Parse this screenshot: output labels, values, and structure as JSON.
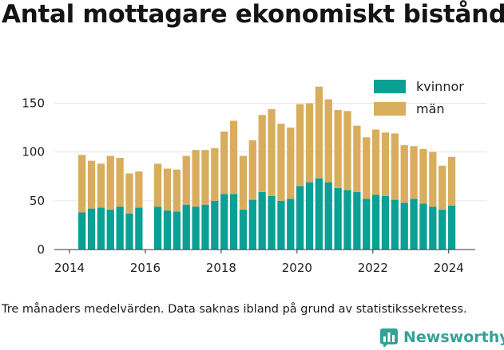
{
  "title": "Antal mottagare ekonomiskt bistånd",
  "footnote": "Tre månaders medelvärden. Data saknas ibland på grund av statistikssekretess.",
  "brand": "Newsworthy",
  "colors": {
    "kvinnor": "#0aa096",
    "man": "#d9ad5e",
    "brand": "#34a298",
    "grid": "#e6e6e6",
    "axis": "#333333"
  },
  "chart_data": {
    "type": "bar",
    "stacked": true,
    "x_ticks": [
      2014,
      2016,
      2018,
      2020,
      2022,
      2024
    ],
    "y_ticks": [
      0,
      50,
      100,
      150
    ],
    "xlim": [
      2013.6,
      2024.7
    ],
    "ylim": [
      0,
      170
    ],
    "grid": true,
    "legend_position": "top-right",
    "x": [
      2014.33,
      2014.58,
      2014.83,
      2015.08,
      2015.33,
      2015.58,
      2015.83,
      2016.08,
      2016.33,
      2016.58,
      2016.83,
      2017.08,
      2017.33,
      2017.58,
      2017.83,
      2018.08,
      2018.33,
      2018.58,
      2018.83,
      2019.08,
      2019.33,
      2019.58,
      2019.83,
      2020.08,
      2020.33,
      2020.58,
      2020.83,
      2021.08,
      2021.33,
      2021.58,
      2021.83,
      2022.08,
      2022.33,
      2022.58,
      2022.83,
      2023.08,
      2023.33,
      2023.58,
      2023.83,
      2024.08
    ],
    "series": [
      {
        "name": "kvinnor",
        "values": [
          38,
          42,
          43,
          41,
          44,
          37,
          43,
          null,
          44,
          40,
          39,
          46,
          44,
          46,
          50,
          57,
          57,
          41,
          51,
          59,
          55,
          50,
          52,
          65,
          69,
          73,
          69,
          63,
          61,
          59,
          52,
          56,
          55,
          51,
          48,
          52,
          47,
          44,
          41,
          45
        ]
      },
      {
        "name": "män",
        "values": [
          59,
          49,
          45,
          55,
          50,
          41,
          37,
          null,
          44,
          43,
          43,
          50,
          58,
          56,
          54,
          64,
          75,
          55,
          61,
          79,
          89,
          79,
          73,
          84,
          81,
          94,
          85,
          80,
          81,
          68,
          63,
          67,
          65,
          68,
          59,
          54,
          56,
          56,
          45,
          50
        ]
      }
    ]
  }
}
